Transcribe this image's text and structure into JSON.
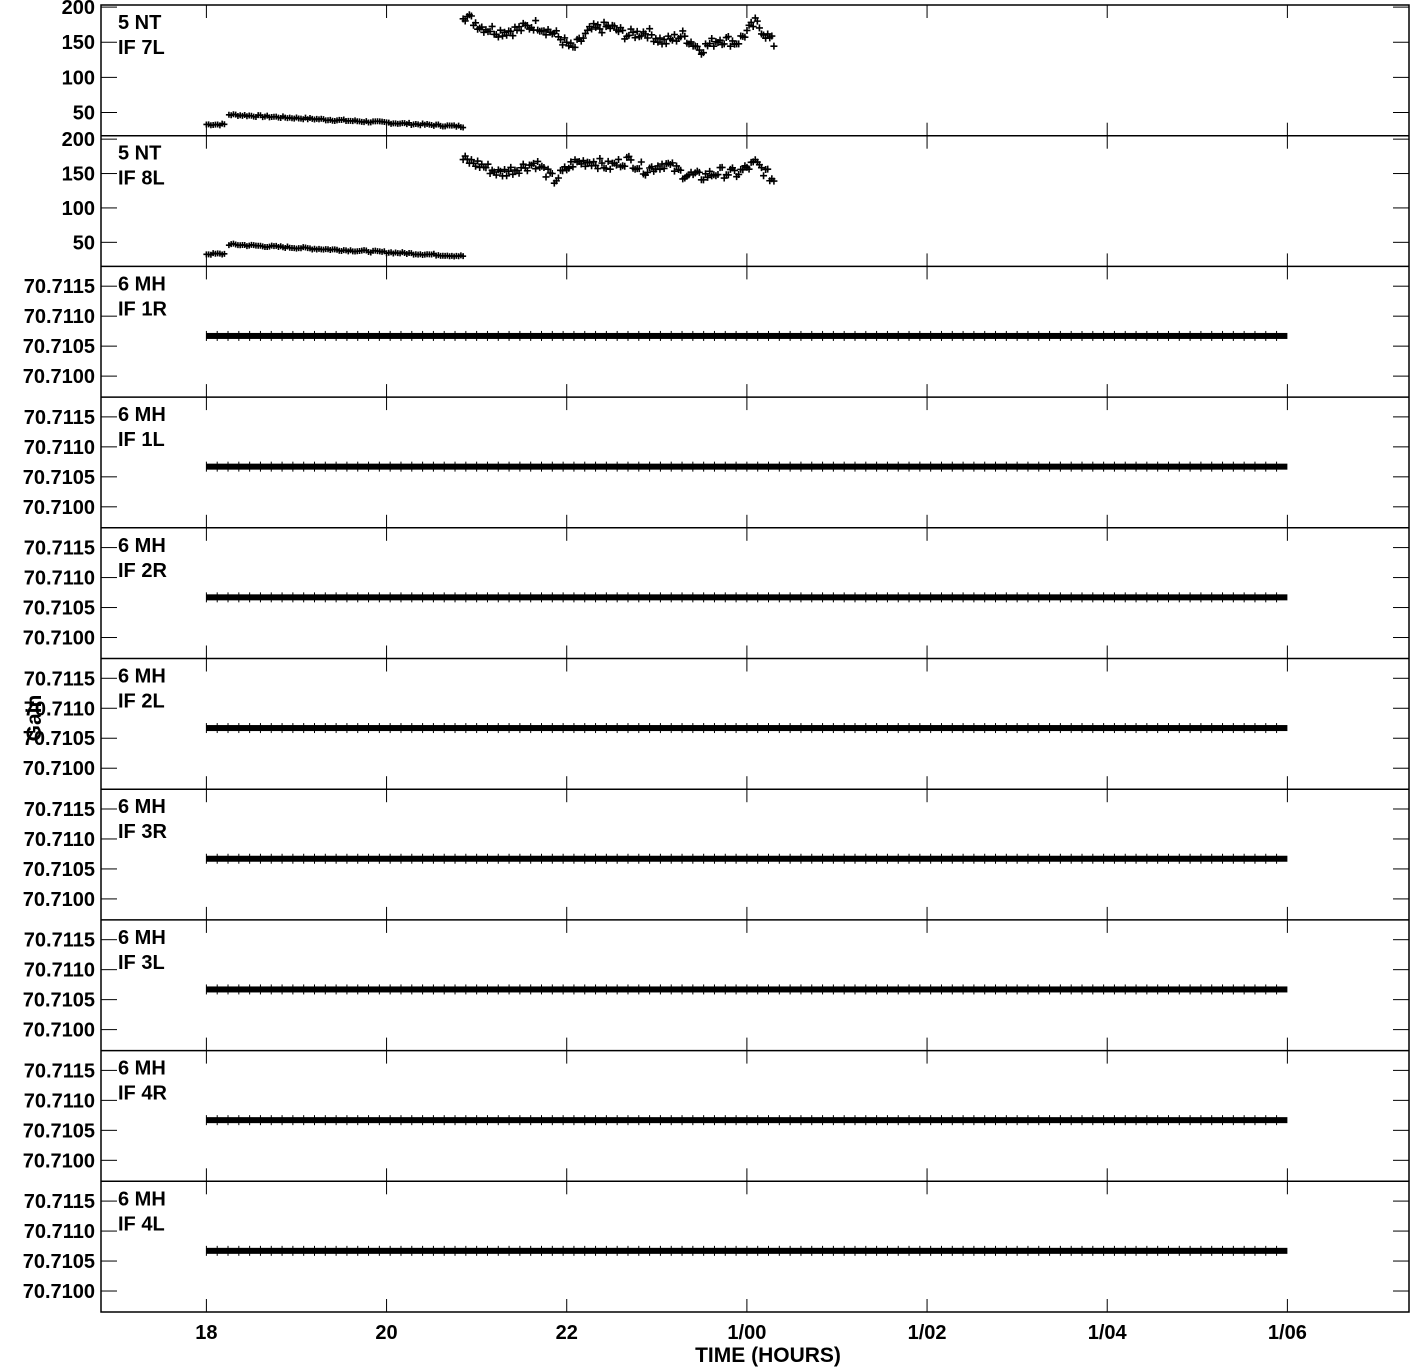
{
  "chart_data": {
    "type": "scatter",
    "xlabel": "TIME (HOURS)",
    "ylabel": "Gain",
    "x_unit": "hours",
    "xlim": [
      16.83,
      31.35
    ],
    "x_ticks": [
      {
        "value": 18,
        "label": "18"
      },
      {
        "value": 20,
        "label": "20"
      },
      {
        "value": 22,
        "label": "22"
      },
      {
        "value": 24,
        "label": "1/00"
      },
      {
        "value": 26,
        "label": "1/02"
      },
      {
        "value": 28,
        "label": "1/04"
      },
      {
        "value": 30,
        "label": "1/06"
      }
    ],
    "panels": [
      {
        "antenna": "5 NT",
        "if_label": "IF 7L",
        "ylim": [
          17,
          203
        ],
        "yticks": [
          {
            "value": 50,
            "label": "50"
          },
          {
            "value": 100,
            "label": "100"
          },
          {
            "value": 150,
            "label": "150"
          },
          {
            "value": 200,
            "label": "200"
          }
        ],
        "segments": [
          {
            "x_start": 18.0,
            "x_end": 18.2,
            "y_start": 33,
            "y_end": 33
          },
          {
            "x_start": 18.25,
            "x_end": 20.85,
            "y_start": 47,
            "y_end": 30
          },
          {
            "x_start": 20.85,
            "x_end": 24.3,
            "y_points": [
              190,
              172,
              165,
              168,
              175,
              162,
              140,
              168,
              172,
              160,
              165,
              150,
              160,
              140,
              155,
              150,
              178,
              148
            ]
          }
        ]
      },
      {
        "antenna": "5 NT",
        "if_label": "IF 8L",
        "ylim": [
          15,
          205
        ],
        "yticks": [
          {
            "value": 50,
            "label": "50"
          },
          {
            "value": 100,
            "label": "100"
          },
          {
            "value": 150,
            "label": "150"
          },
          {
            "value": 200,
            "label": "200"
          }
        ],
        "segments": [
          {
            "x_start": 18.0,
            "x_end": 18.2,
            "y_start": 33,
            "y_end": 33
          },
          {
            "x_start": 18.25,
            "x_end": 20.85,
            "y_start": 47,
            "y_end": 30
          },
          {
            "x_start": 20.85,
            "x_end": 24.3,
            "y_points": [
              170,
              162,
              150,
              158,
              165,
              140,
              165,
              168,
              160,
              170,
              155,
              165,
              150,
              145,
              152,
              150,
              165,
              140
            ]
          }
        ]
      },
      {
        "antenna": "6 MH",
        "if_label": "IF 1R",
        "ylim": [
          70.70965,
          70.71183
        ],
        "yticks": [
          {
            "value": 70.71,
            "label": "70.7100"
          },
          {
            "value": 70.7105,
            "label": "70.7105"
          },
          {
            "value": 70.711,
            "label": "70.7110"
          },
          {
            "value": 70.7115,
            "label": "70.7115"
          }
        ],
        "segments": [
          {
            "x_start": 18.0,
            "x_end": 30.0,
            "y_start": 70.71067,
            "y_end": 70.71067
          }
        ]
      },
      {
        "antenna": "6 MH",
        "if_label": "IF 1L",
        "ylim": [
          70.70965,
          70.71183
        ],
        "yticks": [
          {
            "value": 70.71,
            "label": "70.7100"
          },
          {
            "value": 70.7105,
            "label": "70.7105"
          },
          {
            "value": 70.711,
            "label": "70.7110"
          },
          {
            "value": 70.7115,
            "label": "70.7115"
          }
        ],
        "segments": [
          {
            "x_start": 18.0,
            "x_end": 30.0,
            "y_start": 70.71067,
            "y_end": 70.71067
          }
        ]
      },
      {
        "antenna": "6 MH",
        "if_label": "IF 2R",
        "ylim": [
          70.70965,
          70.71183
        ],
        "yticks": [
          {
            "value": 70.71,
            "label": "70.7100"
          },
          {
            "value": 70.7105,
            "label": "70.7105"
          },
          {
            "value": 70.711,
            "label": "70.7110"
          },
          {
            "value": 70.7115,
            "label": "70.7115"
          }
        ],
        "segments": [
          {
            "x_start": 18.0,
            "x_end": 30.0,
            "y_start": 70.71067,
            "y_end": 70.71067
          }
        ]
      },
      {
        "antenna": "6 MH",
        "if_label": "IF 2L",
        "ylim": [
          70.70965,
          70.71183
        ],
        "yticks": [
          {
            "value": 70.71,
            "label": "70.7100"
          },
          {
            "value": 70.7105,
            "label": "70.7105"
          },
          {
            "value": 70.711,
            "label": "70.7110"
          },
          {
            "value": 70.7115,
            "label": "70.7115"
          }
        ],
        "segments": [
          {
            "x_start": 18.0,
            "x_end": 30.0,
            "y_start": 70.71067,
            "y_end": 70.71067
          }
        ]
      },
      {
        "antenna": "6 MH",
        "if_label": "IF 3R",
        "ylim": [
          70.70965,
          70.71183
        ],
        "yticks": [
          {
            "value": 70.71,
            "label": "70.7100"
          },
          {
            "value": 70.7105,
            "label": "70.7105"
          },
          {
            "value": 70.711,
            "label": "70.7110"
          },
          {
            "value": 70.7115,
            "label": "70.7115"
          }
        ],
        "segments": [
          {
            "x_start": 18.0,
            "x_end": 30.0,
            "y_start": 70.71067,
            "y_end": 70.71067
          }
        ]
      },
      {
        "antenna": "6 MH",
        "if_label": "IF 3L",
        "ylim": [
          70.70965,
          70.71183
        ],
        "yticks": [
          {
            "value": 70.71,
            "label": "70.7100"
          },
          {
            "value": 70.7105,
            "label": "70.7105"
          },
          {
            "value": 70.711,
            "label": "70.7110"
          },
          {
            "value": 70.7115,
            "label": "70.7115"
          }
        ],
        "segments": [
          {
            "x_start": 18.0,
            "x_end": 30.0,
            "y_start": 70.71067,
            "y_end": 70.71067
          }
        ]
      },
      {
        "antenna": "6 MH",
        "if_label": "IF 4R",
        "ylim": [
          70.70965,
          70.71183
        ],
        "yticks": [
          {
            "value": 70.71,
            "label": "70.7100"
          },
          {
            "value": 70.7105,
            "label": "70.7105"
          },
          {
            "value": 70.711,
            "label": "70.7110"
          },
          {
            "value": 70.7115,
            "label": "70.7115"
          }
        ],
        "segments": [
          {
            "x_start": 18.0,
            "x_end": 30.0,
            "y_start": 70.71067,
            "y_end": 70.71067
          }
        ]
      },
      {
        "antenna": "6 MH",
        "if_label": "IF 4L",
        "ylim": [
          70.70965,
          70.71183
        ],
        "yticks": [
          {
            "value": 70.71,
            "label": "70.7100"
          },
          {
            "value": 70.7105,
            "label": "70.7105"
          },
          {
            "value": 70.711,
            "label": "70.7110"
          },
          {
            "value": 70.7115,
            "label": "70.7115"
          }
        ],
        "segments": [
          {
            "x_start": 18.0,
            "x_end": 30.0,
            "y_start": 70.71067,
            "y_end": 70.71067
          }
        ]
      }
    ]
  }
}
